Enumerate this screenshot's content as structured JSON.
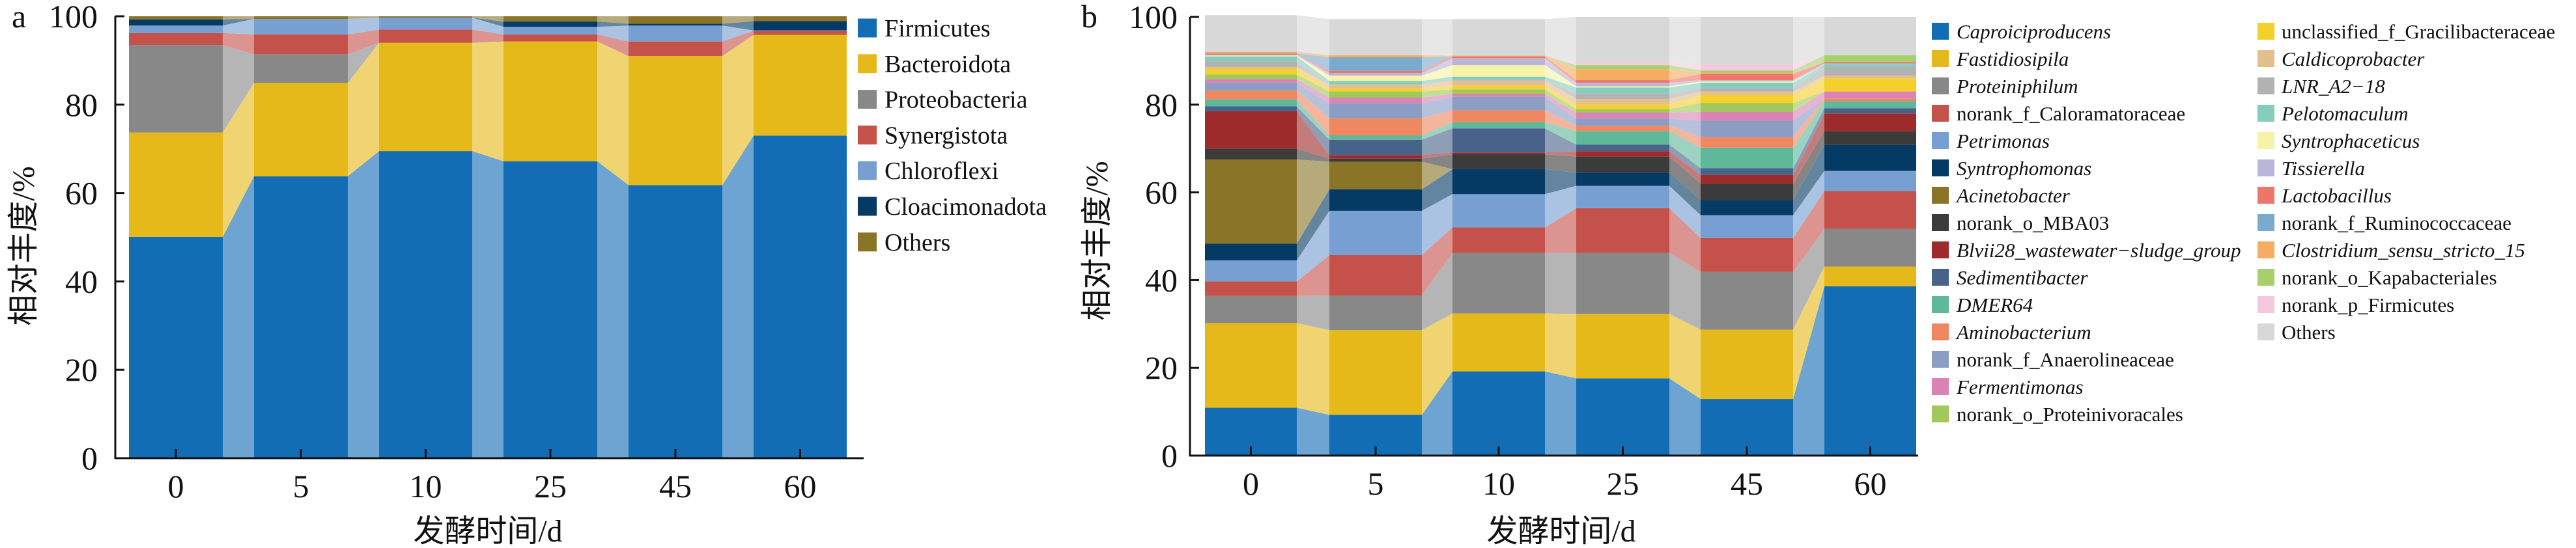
{
  "figure": {
    "panel_a_label": "a",
    "panel_b_label": "b"
  },
  "chart_data": [
    {
      "type": "bar",
      "stacked": true,
      "panel": "a",
      "title": "",
      "xlabel": "发酵时间/d",
      "ylabel": "相对丰度/%",
      "ylim": [
        0,
        100
      ],
      "yticks": [
        "0",
        "20",
        "40",
        "60",
        "80",
        "100"
      ],
      "categories": [
        "0",
        "5",
        "10",
        "25",
        "45",
        "60"
      ],
      "legend_position": "right",
      "grid": false,
      "series": [
        {
          "name": "Firmicutes",
          "italic": false,
          "color": "#136db5",
          "values": [
            50.1,
            63.8,
            69.5,
            67.2,
            61.8,
            73.0
          ]
        },
        {
          "name": "Bacteroidota",
          "italic": false,
          "color": "#e6b91a",
          "values": [
            23.6,
            21.1,
            24.5,
            27.1,
            29.2,
            22.8
          ]
        },
        {
          "name": "Proteobacteria",
          "italic": false,
          "color": "#888888",
          "values": [
            19.8,
            6.5,
            0.0,
            0.0,
            0.0,
            0.0
          ]
        },
        {
          "name": "Synergistota",
          "italic": false,
          "color": "#c5524a",
          "values": [
            2.7,
            4.5,
            3.0,
            1.6,
            3.3,
            0.9
          ]
        },
        {
          "name": "Chloroflexi",
          "italic": false,
          "color": "#789fd1",
          "values": [
            1.7,
            3.5,
            2.7,
            1.7,
            3.6,
            0.1
          ]
        },
        {
          "name": "Cloacimonadota",
          "italic": false,
          "color": "#053a64",
          "values": [
            1.4,
            0.0,
            0.0,
            1.2,
            0.4,
            2.1
          ]
        },
        {
          "name": "Others",
          "italic": false,
          "color": "#8a7428",
          "values": [
            0.7,
            0.6,
            0.3,
            1.2,
            1.7,
            1.1
          ]
        }
      ]
    },
    {
      "type": "bar",
      "stacked": true,
      "panel": "b",
      "title": "",
      "xlabel": "发酵时间/d",
      "ylabel": "相对丰度/%",
      "ylim": [
        0,
        100
      ],
      "yticks": [
        "0",
        "20",
        "40",
        "60",
        "80",
        "100"
      ],
      "categories": [
        "0",
        "5",
        "10",
        "25",
        "45",
        "60"
      ],
      "legend_position": "right",
      "grid": false,
      "series": [
        {
          "name": "Caproiciproducens",
          "italic": true,
          "color": "#136db5",
          "values": [
            10.9,
            9.3,
            19.2,
            17.6,
            12.9,
            38.6
          ]
        },
        {
          "name": "Fastidiosipila",
          "italic": true,
          "color": "#e6b91a",
          "values": [
            19.3,
            19.3,
            13.2,
            14.7,
            15.8,
            4.5
          ]
        },
        {
          "name": "Proteiniphilum",
          "italic": true,
          "color": "#888888",
          "values": [
            6.2,
            7.9,
            13.8,
            13.9,
            13.2,
            8.6
          ]
        },
        {
          "name": "norank_f_Caloramatoraceae",
          "italic": false,
          "color": "#c5524a",
          "values": [
            3.3,
            9.2,
            5.8,
            10.2,
            7.7,
            8.6
          ]
        },
        {
          "name": "Petrimonas",
          "italic": true,
          "color": "#789fd1",
          "values": [
            4.8,
            10.1,
            7.6,
            5.1,
            5.2,
            4.6
          ]
        },
        {
          "name": "Syntrophomonas",
          "italic": true,
          "color": "#053a64",
          "values": [
            3.8,
            4.9,
            5.7,
            3.0,
            3.5,
            5.9
          ]
        },
        {
          "name": "Acinetobacter",
          "italic": true,
          "color": "#8a7428",
          "values": [
            19.2,
            6.3,
            0.0,
            0.0,
            0.0,
            0.0
          ]
        },
        {
          "name": "norank_o_MBA03",
          "italic": false,
          "color": "#3b3b3b",
          "values": [
            2.5,
            0.7,
            3.4,
            3.7,
            3.7,
            3.2
          ]
        },
        {
          "name": "Blvii28_wastewater−sludge_group",
          "italic": true,
          "color": "#9e2b2b",
          "values": [
            8.5,
            0.8,
            0.4,
            1.2,
            2.0,
            4.0
          ]
        },
        {
          "name": "Sedimentibacter",
          "italic": true,
          "color": "#47638a",
          "values": [
            1.1,
            3.5,
            5.5,
            1.5,
            1.5,
            1.2
          ]
        },
        {
          "name": "DMER64",
          "italic": true,
          "color": "#5fb89a",
          "values": [
            1.6,
            1.0,
            1.4,
            3.1,
            4.7,
            1.6
          ]
        },
        {
          "name": "Aminobacterium",
          "italic": true,
          "color": "#ef8760",
          "values": [
            2.0,
            3.9,
            2.7,
            1.2,
            2.4,
            0.6
          ]
        },
        {
          "name": "norank_f_Anaerolineaceae",
          "italic": false,
          "color": "#8b9dc3",
          "values": [
            1.8,
            3.4,
            3.1,
            1.6,
            3.8,
            0.0
          ]
        },
        {
          "name": "Fermentimonas",
          "italic": true,
          "color": "#d984b5",
          "values": [
            0.8,
            1.3,
            0.7,
            1.4,
            2.0,
            1.6
          ]
        },
        {
          "name": "norank_o_Proteinivoracales",
          "italic": false,
          "color": "#a0c95a",
          "values": [
            1.1,
            1.4,
            1.0,
            0.8,
            2.0,
            0.0
          ]
        },
        {
          "name": "unclassified_f_Gracilibacteraceae",
          "italic": false,
          "color": "#f5d02b",
          "values": [
            1.3,
            0.7,
            0.8,
            1.0,
            1.8,
            3.0
          ]
        },
        {
          "name": "Caldicoprobacter",
          "italic": true,
          "color": "#e2bf8c",
          "values": [
            0.4,
            0.9,
            1.2,
            1.3,
            0.8,
            0.6
          ]
        },
        {
          "name": "LNR_A2−18",
          "italic": true,
          "color": "#b2b2b2",
          "values": [
            1.3,
            0.0,
            0.2,
            1.3,
            0.8,
            1.9
          ]
        },
        {
          "name": "Pelotomaculum",
          "italic": true,
          "color": "#85cdbf",
          "values": [
            1.1,
            0.8,
            0.7,
            1.3,
            1.2,
            0.6
          ]
        },
        {
          "name": "Syntrophaceticus",
          "italic": true,
          "color": "#f6f3a8",
          "values": [
            0.2,
            1.2,
            2.6,
            0.3,
            0.3,
            0.0
          ]
        },
        {
          "name": "Tissierella",
          "italic": true,
          "color": "#b9b6d8",
          "values": [
            0.2,
            0.6,
            1.6,
            0.8,
            0.3,
            0.3
          ]
        },
        {
          "name": "Lactobacillus",
          "italic": true,
          "color": "#ee7569",
          "values": [
            0.2,
            0.5,
            0.4,
            0.6,
            1.4,
            0.3
          ]
        },
        {
          "name": "norank_f_Ruminococcaceae",
          "italic": false,
          "color": "#7aaace",
          "values": [
            0.1,
            3.1,
            0.0,
            0.0,
            0.0,
            0.0
          ]
        },
        {
          "name": "Clostridium_sensu_stricto_15",
          "italic": true,
          "color": "#f6ad61",
          "values": [
            0.3,
            0.5,
            0.1,
            2.5,
            0.3,
            0.0
          ]
        },
        {
          "name": "norank_o_Kapabacteriales",
          "italic": false,
          "color": "#a5d06b",
          "values": [
            0.1,
            0.0,
            0.1,
            0.9,
            0.5,
            1.6
          ]
        },
        {
          "name": "norank_p_Firmicutes",
          "italic": false,
          "color": "#f4c9de",
          "values": [
            0.3,
            0.0,
            0.1,
            0.6,
            1.4,
            0.0
          ]
        },
        {
          "name": "Others",
          "italic": false,
          "color": "#d8d8d8",
          "values": [
            8.0,
            8.2,
            8.2,
            10.4,
            10.8,
            8.7
          ]
        }
      ]
    }
  ]
}
